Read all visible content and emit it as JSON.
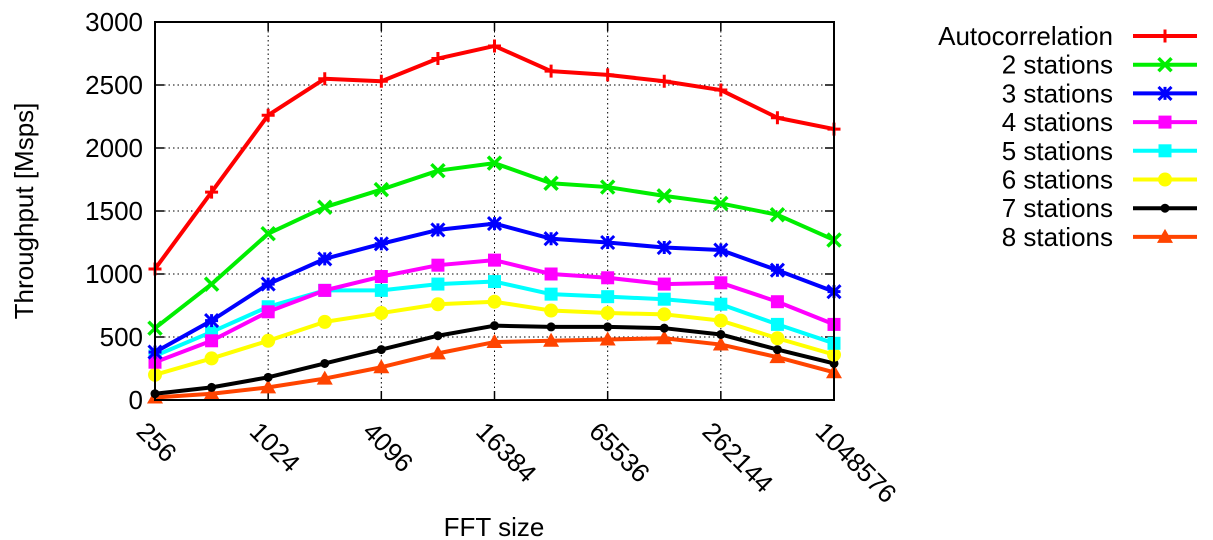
{
  "chart_data": {
    "type": "line",
    "xlabel": "FFT size",
    "ylabel": "Throughput [Msps]",
    "xscale": "log2",
    "x": [
      256,
      512,
      1024,
      2048,
      4096,
      8192,
      16384,
      32768,
      65536,
      131072,
      262144,
      524288,
      1048576
    ],
    "x_tick_labels": [
      "256",
      "1024",
      "4096",
      "16384",
      "65536",
      "262144",
      "1048576"
    ],
    "x_tick_values": [
      256,
      1024,
      4096,
      16384,
      65536,
      262144,
      1048576
    ],
    "ylim": [
      0,
      3000
    ],
    "y_ticks": [
      0,
      500,
      1000,
      1500,
      2000,
      2500,
      3000
    ],
    "grid": true,
    "legend_position": "right",
    "series": [
      {
        "name": "Autocorrelation",
        "color": "#ff0000",
        "marker": "plus",
        "values": [
          1040,
          1650,
          2260,
          2550,
          2530,
          2710,
          2810,
          2610,
          2580,
          2530,
          2460,
          2240,
          2150
        ]
      },
      {
        "name": "2 stations",
        "color": "#00ee00",
        "marker": "cross",
        "values": [
          570,
          920,
          1320,
          1530,
          1670,
          1820,
          1880,
          1720,
          1690,
          1620,
          1560,
          1470,
          1270
        ]
      },
      {
        "name": "3 stations",
        "color": "#0000ff",
        "marker": "star",
        "values": [
          380,
          630,
          920,
          1120,
          1240,
          1350,
          1400,
          1280,
          1250,
          1210,
          1190,
          1030,
          860
        ]
      },
      {
        "name": "4 stations",
        "color": "#ff00ff",
        "marker": "square",
        "values": [
          300,
          470,
          700,
          870,
          980,
          1070,
          1110,
          1000,
          970,
          920,
          930,
          780,
          600
        ]
      },
      {
        "name": "5 stations",
        "color": "#00ffff",
        "marker": "square-filled",
        "values": [
          350,
          540,
          740,
          870,
          870,
          920,
          940,
          840,
          820,
          800,
          760,
          600,
          450
        ]
      },
      {
        "name": "6 stations",
        "color": "#ffff00",
        "marker": "circle",
        "values": [
          200,
          330,
          470,
          620,
          690,
          760,
          780,
          710,
          690,
          680,
          630,
          490,
          360
        ]
      },
      {
        "name": "7 stations",
        "color": "#000000",
        "marker": "dot",
        "values": [
          50,
          100,
          180,
          290,
          400,
          510,
          590,
          580,
          580,
          570,
          520,
          400,
          290
        ]
      },
      {
        "name": "8 stations",
        "color": "#ff4400",
        "marker": "triangle",
        "values": [
          20,
          50,
          100,
          170,
          260,
          370,
          460,
          470,
          480,
          490,
          440,
          340,
          220
        ]
      }
    ]
  }
}
